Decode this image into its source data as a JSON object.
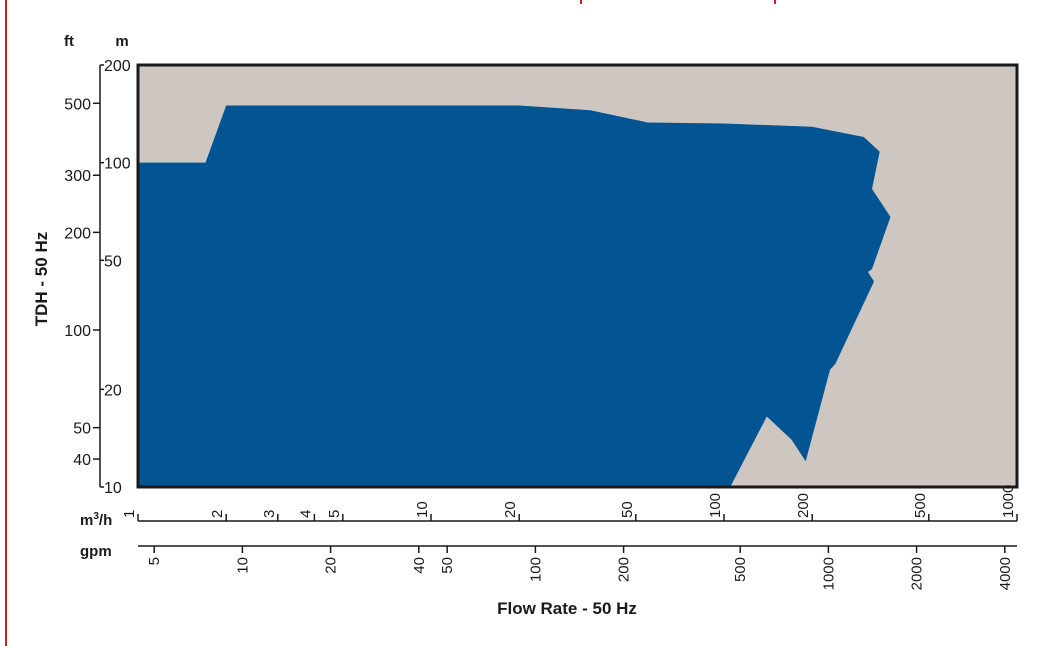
{
  "colors": {
    "border": "#cc1f1f",
    "background": "#cdc6c1",
    "fill": "#035492",
    "text": "#1a1a1a"
  },
  "chart_data": {
    "type": "area",
    "title": "",
    "xlabel": "Flow Rate - 50 Hz",
    "ylabel": "TDH - 50 Hz",
    "x_scale": "log",
    "y_scale": "log",
    "xlim_m3h": [
      1,
      1000
    ],
    "ylim_m": [
      10,
      200
    ],
    "x_units": [
      "m³/h",
      "gpm"
    ],
    "y_units": [
      "ft",
      "m"
    ],
    "x_ticks_m3h": [
      1,
      2,
      3,
      4,
      5,
      10,
      20,
      50,
      100,
      200,
      500,
      1000
    ],
    "x_ticks_gpm": [
      5,
      10,
      20,
      40,
      50,
      100,
      200,
      500,
      1000,
      2000,
      4000
    ],
    "y_ticks_m": [
      10,
      20,
      50,
      100,
      200
    ],
    "y_ticks_ft": [
      40,
      50,
      100,
      200,
      300,
      500
    ],
    "grid": false,
    "legend": "none",
    "envelope": {
      "name": "",
      "points": [
        {
          "x": 1,
          "y": 10
        },
        {
          "x": 1,
          "y": 100
        },
        {
          "x": 1.7,
          "y": 100
        },
        {
          "x": 2,
          "y": 150
        },
        {
          "x": 20,
          "y": 150
        },
        {
          "x": 35,
          "y": 145
        },
        {
          "x": 55,
          "y": 133
        },
        {
          "x": 100,
          "y": 132
        },
        {
          "x": 200,
          "y": 129
        },
        {
          "x": 300,
          "y": 120
        },
        {
          "x": 340,
          "y": 108
        },
        {
          "x": 320,
          "y": 83
        },
        {
          "x": 370,
          "y": 68
        },
        {
          "x": 320,
          "y": 47
        },
        {
          "x": 310,
          "y": 46
        },
        {
          "x": 325,
          "y": 43
        },
        {
          "x": 240,
          "y": 24
        },
        {
          "x": 230,
          "y": 23
        },
        {
          "x": 190,
          "y": 12
        },
        {
          "x": 170,
          "y": 14
        },
        {
          "x": 140,
          "y": 16.5
        },
        {
          "x": 105,
          "y": 10
        }
      ]
    }
  }
}
